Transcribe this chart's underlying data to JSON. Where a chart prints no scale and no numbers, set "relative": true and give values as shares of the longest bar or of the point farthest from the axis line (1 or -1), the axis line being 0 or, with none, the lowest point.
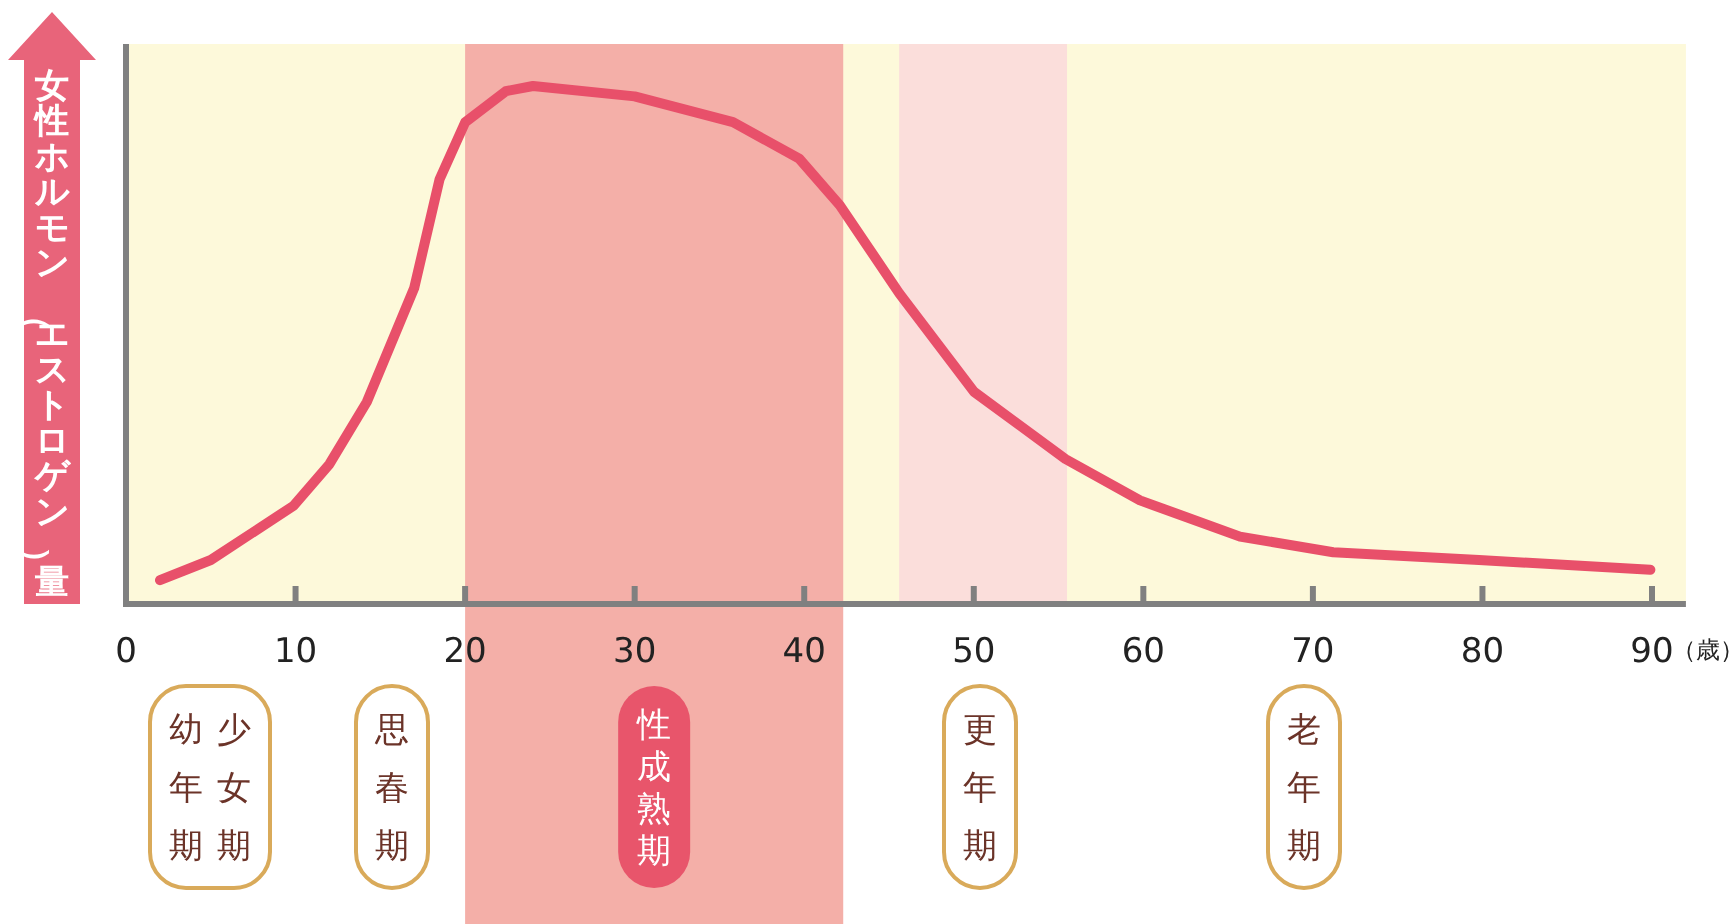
{
  "chart_data": {
    "type": "line",
    "relative": true,
    "ylabel": "女性ホルモン（エストロゲン）量",
    "xlabel": "（歳）",
    "xlim": [
      0,
      92
    ],
    "xticks": [
      0,
      10,
      20,
      30,
      40,
      50,
      60,
      70,
      80,
      90
    ],
    "series": [
      {
        "color": "#e8506a",
        "x": [
          2,
          5,
          9.9,
          12,
          14.2,
          17,
          18.5,
          20,
          22.4,
          24,
          30,
          35.8,
          39.7,
          42.1,
          45.6,
          50,
          55.4,
          59.8,
          65.7,
          71.2,
          79.8,
          89.9
        ],
        "values": [
          0.046,
          0.085,
          0.19,
          0.27,
          0.39,
          0.61,
          0.82,
          0.93,
          0.99,
          1,
          0.98,
          0.93,
          0.86,
          0.77,
          0.6,
          0.41,
          0.28,
          0.2,
          0.13,
          0.1,
          0.085,
          0.066
        ]
      }
    ],
    "bands": [
      {
        "axis": "x",
        "from": 20,
        "to": 42.3,
        "label": "性成熟期",
        "color": "#f4afa8"
      },
      {
        "axis": "x",
        "from": 45.6,
        "to": 55.5,
        "color": "#fbdedb"
      }
    ],
    "annotations": [
      "幼年期",
      "少女期",
      "思春期",
      "更年期",
      "老年期"
    ]
  }
}
